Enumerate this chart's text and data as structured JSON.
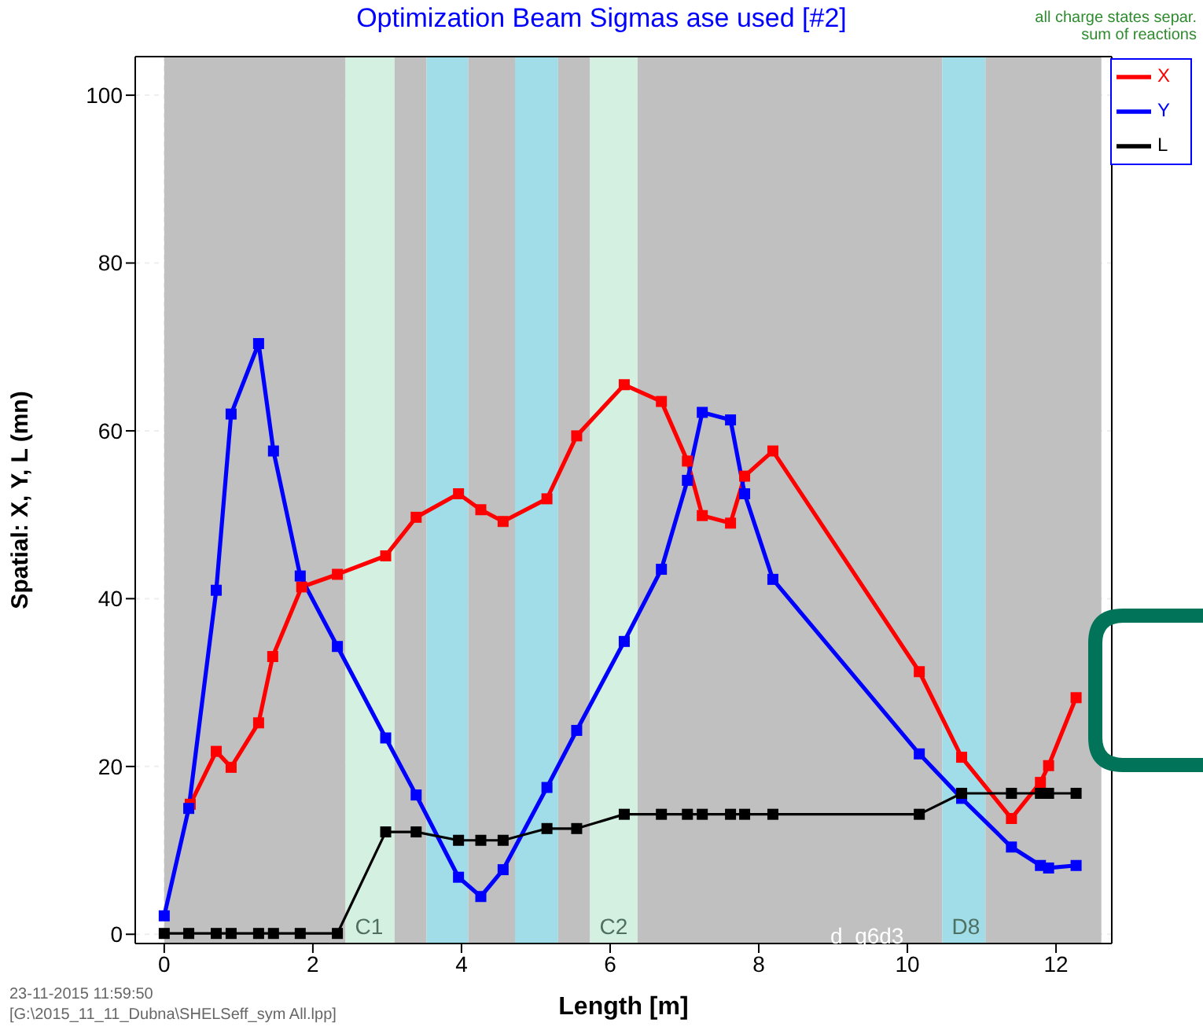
{
  "chart_data": {
    "type": "line",
    "title": "Optimization Beam Sigmas ase used [#2]",
    "xlabel": "Length [m]",
    "ylabel": "Spatial:  X, Y, L  (mn)",
    "xlim": [
      -0.39,
      12.75
    ],
    "xticks": [
      0,
      2,
      4,
      6,
      8,
      10,
      12
    ],
    "ylim": [
      -1.1,
      104.6
    ],
    "yticks": [
      0,
      20,
      40,
      60,
      80,
      100
    ],
    "grid": true,
    "legend": "top right",
    "marker": "square",
    "line_style": "solid",
    "series": [
      {
        "name": "X",
        "color": "#ff0000",
        "x": [
          0.35,
          0.7,
          0.9,
          1.27,
          1.46,
          1.85,
          2.33,
          2.98,
          3.39,
          3.96,
          4.26,
          4.56,
          5.15,
          5.55,
          6.19,
          6.69,
          7.04,
          7.24,
          7.62,
          7.81,
          8.19,
          10.16,
          10.73,
          11.4,
          11.79,
          11.9,
          12.27
        ],
        "values": [
          15.5,
          21.8,
          19.9,
          25.2,
          33.1,
          41.4,
          42.9,
          45.1,
          49.7,
          52.5,
          50.6,
          49.2,
          51.9,
          59.4,
          65.5,
          63.5,
          56.4,
          49.9,
          49.0,
          54.6,
          57.6,
          31.3,
          21.1,
          13.8,
          18.1,
          20.1,
          28.2
        ]
      },
      {
        "name": "Y",
        "color": "#0000ff",
        "x": [
          0,
          0.33,
          0.7,
          0.9,
          1.27,
          1.47,
          1.83,
          2.33,
          2.98,
          3.39,
          3.96,
          4.26,
          4.56,
          5.15,
          5.55,
          6.19,
          6.69,
          7.04,
          7.24,
          7.62,
          7.81,
          8.19,
          10.16,
          10.73,
          11.4,
          11.79,
          11.9,
          12.27
        ],
        "values": [
          2.2,
          15.0,
          41.0,
          62.0,
          70.4,
          57.6,
          42.7,
          34.3,
          23.4,
          16.6,
          6.8,
          4.5,
          7.7,
          17.5,
          24.3,
          34.9,
          43.5,
          54.1,
          62.2,
          61.3,
          52.5,
          42.3,
          21.5,
          16.2,
          10.4,
          8.2,
          7.9,
          8.2
        ]
      },
      {
        "name": "L",
        "color": "#000000",
        "x": [
          0,
          0.33,
          0.7,
          0.9,
          1.27,
          1.47,
          1.83,
          2.33,
          2.98,
          3.39,
          3.96,
          4.26,
          4.56,
          5.15,
          5.55,
          6.19,
          6.69,
          7.04,
          7.24,
          7.62,
          7.81,
          8.19,
          10.16,
          10.73,
          11.4,
          11.79,
          11.9,
          12.27
        ],
        "values": [
          0.1,
          0.1,
          0.1,
          0.1,
          0.1,
          0.1,
          0.1,
          0.1,
          12.2,
          12.2,
          11.2,
          11.2,
          11.2,
          12.6,
          12.6,
          14.3,
          14.3,
          14.3,
          14.3,
          14.3,
          14.3,
          14.3,
          14.3,
          16.8,
          16.8,
          16.8,
          16.8,
          16.8
        ]
      }
    ],
    "bands": [
      {
        "axis": "x",
        "from": 0,
        "to": 2.44,
        "color": "#c0c0c0"
      },
      {
        "axis": "x",
        "from": 2.44,
        "to": 3.1,
        "color": "#d4f0e0",
        "label": "C1"
      },
      {
        "axis": "x",
        "from": 3.1,
        "to": 3.53,
        "color": "#c0c0c0"
      },
      {
        "axis": "x",
        "from": 3.53,
        "to": 4.09,
        "color": "#a0dde8"
      },
      {
        "axis": "x",
        "from": 4.09,
        "to": 4.72,
        "color": "#c0c0c0"
      },
      {
        "axis": "x",
        "from": 4.72,
        "to": 5.3,
        "color": "#a0dde8"
      },
      {
        "axis": "x",
        "from": 5.3,
        "to": 5.73,
        "color": "#c0c0c0"
      },
      {
        "axis": "x",
        "from": 5.73,
        "to": 6.37,
        "color": "#d4f0e0",
        "label": "C2"
      },
      {
        "axis": "x",
        "from": 6.37,
        "to": 10.47,
        "color": "#c0c0c0"
      },
      {
        "axis": "x",
        "from": 10.47,
        "to": 11.05,
        "color": "#a0dde8",
        "label": "D8"
      },
      {
        "axis": "x",
        "from": 11.05,
        "to": 12.61,
        "color": "#c0c0c0"
      }
    ],
    "annotations": [
      "d_q6d3",
      "all charge states separ.",
      "sum of reactions",
      "23-11-2015  11:59:50",
      "[G:\\2015_11_11_Dubna\\SHELSeff_sym All.lpp]"
    ]
  }
}
